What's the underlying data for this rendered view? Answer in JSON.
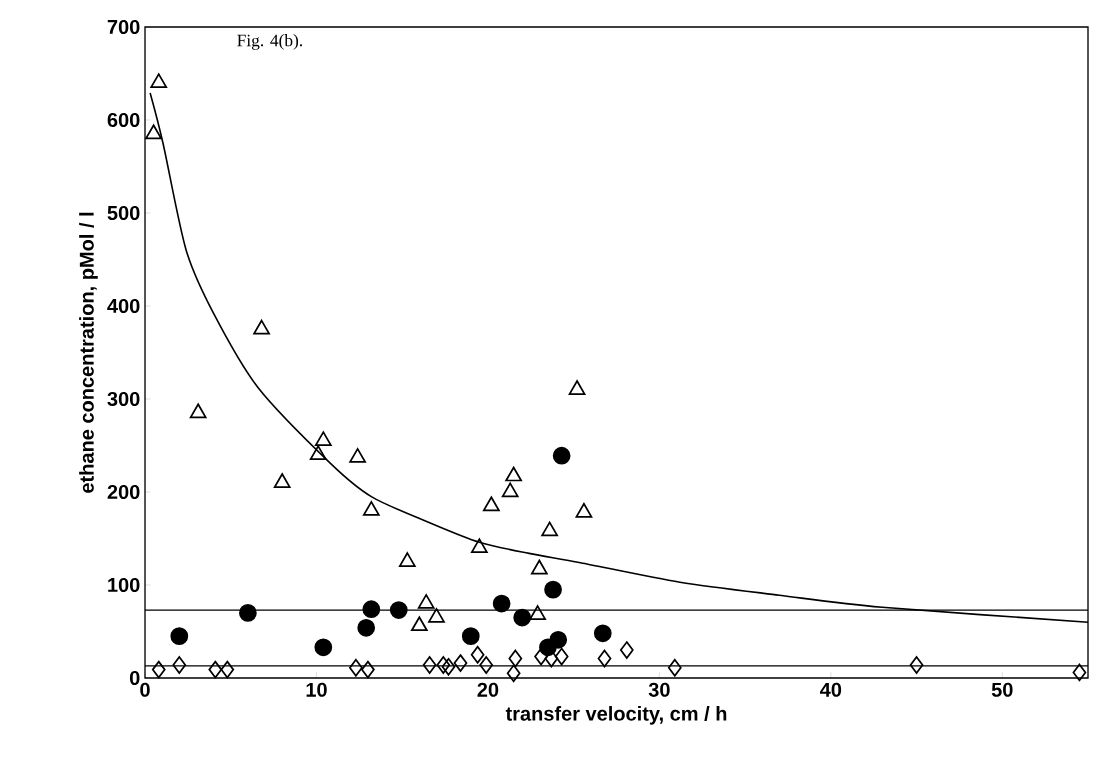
{
  "chart_data": {
    "type": "scatter",
    "xlabel": "transfer velocity, cm / h",
    "ylabel": "ethane concentration, pMol / l",
    "annotations": [
      "Fig. 4(b)."
    ],
    "xlim": [
      0,
      55
    ],
    "ylim": [
      0,
      700
    ],
    "xticks": [
      0,
      10,
      20,
      30,
      40,
      50
    ],
    "yticks": [
      0,
      100,
      200,
      300,
      400,
      500,
      600,
      700
    ],
    "ref_lines": [
      {
        "axis": "y",
        "value": 73,
        "color": "#000000"
      },
      {
        "axis": "y",
        "value": 13,
        "color": "#000000"
      }
    ],
    "series": [
      {
        "type": "scatter",
        "marker": "triangle",
        "color": "#000000",
        "x": [
          0.8,
          0.5,
          6.8,
          3.1,
          10.4,
          10.1,
          12.4,
          8.0,
          13.2,
          15.3,
          19.5,
          20.2,
          21.3,
          21.5,
          16.4,
          17.0,
          16.0,
          25.2,
          25.6,
          23.6,
          23.0,
          22.9
        ],
        "values": [
          640,
          585,
          375,
          285,
          255,
          240,
          237,
          210,
          180,
          125,
          140,
          185,
          200,
          217,
          80,
          65,
          56,
          310,
          178,
          158,
          117,
          68
        ]
      },
      {
        "type": "scatter",
        "marker": "circle",
        "color": "#000000",
        "x": [
          2.0,
          6.0,
          10.4,
          13.2,
          12.9,
          14.8,
          19.0,
          20.8,
          22.0,
          24.3,
          23.8,
          26.7,
          24.1,
          23.5
        ],
        "values": [
          45,
          70,
          33,
          74,
          54,
          73,
          45,
          80,
          65,
          239,
          95,
          48,
          41,
          33
        ]
      },
      {
        "type": "scatter",
        "marker": "diamond",
        "color": "#000000",
        "x": [
          0.8,
          2.0,
          4.1,
          4.8,
          12.3,
          13.0,
          16.6,
          17.4,
          17.7,
          18.4,
          19.4,
          19.9,
          21.6,
          21.5,
          23.1,
          23.7,
          24.3,
          26.8,
          28.1,
          30.9,
          45.0,
          54.5
        ],
        "values": [
          9,
          14,
          9,
          9,
          11,
          9,
          14,
          14,
          12,
          16,
          25,
          14,
          21,
          5,
          23,
          21,
          23,
          21,
          30,
          11,
          14,
          6
        ]
      },
      {
        "type": "line",
        "marker": "none",
        "color": "#000000",
        "x": [
          0.3,
          1.05,
          2.4,
          4.0,
          6.6,
          10.8,
          13.2,
          16.6,
          19.5,
          22.4,
          25.4,
          31.2,
          37.0,
          43.0,
          55.0
        ],
        "values": [
          629,
          575,
          460,
          392,
          312,
          231,
          195,
          167,
          146,
          134,
          124,
          103,
          89,
          76,
          60
        ]
      }
    ]
  }
}
